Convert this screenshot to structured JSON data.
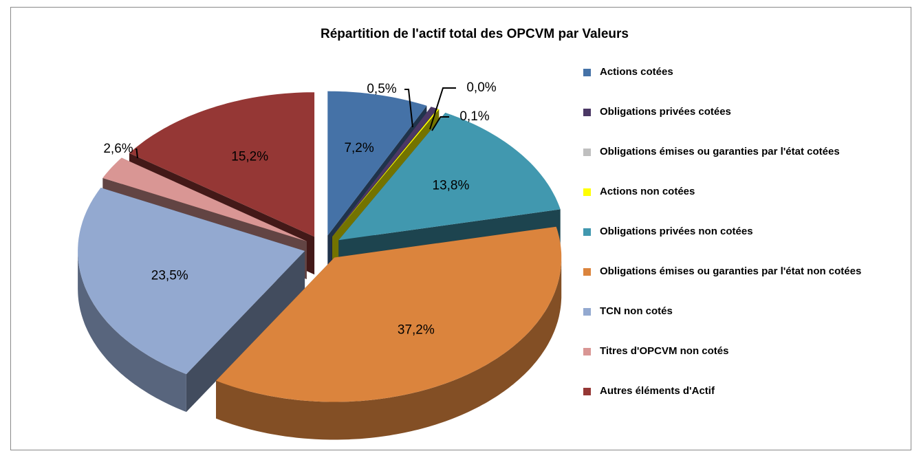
{
  "chart_data": {
    "type": "pie",
    "title": "Répartition de l'actif total des OPCVM par Valeurs",
    "categories": [
      "Actions cotées",
      "Obligations privées cotées",
      "Obligations émises ou garanties par l'état cotées",
      "Actions non cotées",
      "Obligations privées non cotées",
      "Obligations émises ou garanties par l'état non cotées",
      "TCN non cotés",
      "Titres d'OPCVM non cotés",
      "Autres éléments d'Actif"
    ],
    "values": [
      7.2,
      0.5,
      0.0,
      0.1,
      13.8,
      37.2,
      23.5,
      2.6,
      15.2
    ],
    "value_labels": [
      "7,2%",
      "0,5%",
      "0,0%",
      "0,1%",
      "13,8%",
      "37,2%",
      "23,5%",
      "2,6%",
      "15,2%"
    ],
    "colors": [
      "#4572a7",
      "#4b3865",
      "#bfbfbf",
      "#ffff00",
      "#4198af",
      "#db843d",
      "#93a9d0",
      "#d99694",
      "#953735"
    ],
    "legend": "right"
  }
}
